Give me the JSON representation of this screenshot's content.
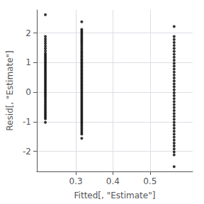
{
  "chart_data": {
    "type": "scatter",
    "xlabel": "Fitted[, \"Estimate\"]",
    "ylabel": "Resid[, \"Estimate\"]",
    "color": "#000000",
    "grid": true,
    "xlim": [
      0.195,
      0.615
    ],
    "ylim": [
      -2.68,
      2.78
    ],
    "xticks": [
      0.3,
      0.4,
      0.5
    ],
    "yticks": [
      -2,
      -1,
      0,
      1,
      2
    ],
    "series": [
      {
        "x": [
          0.218,
          0.218,
          0.218,
          0.218,
          0.218,
          0.218,
          0.218,
          0.218,
          0.218,
          0.218,
          0.218,
          0.218,
          0.218,
          0.218,
          0.218,
          0.218,
          0.218,
          0.218,
          0.218,
          0.218,
          0.218,
          0.218,
          0.218,
          0.218,
          0.218,
          0.218,
          0.218,
          0.218,
          0.218,
          0.218,
          0.218,
          0.218,
          0.218,
          0.218,
          0.218,
          0.218,
          0.218,
          0.218,
          0.218,
          0.218,
          0.218,
          0.218,
          0.218,
          0.218,
          0.218,
          0.218,
          0.218
        ],
        "values": [
          2.62,
          1.88,
          1.8,
          1.72,
          1.64,
          1.56,
          1.48,
          1.4,
          1.32,
          1.26,
          1.2,
          1.14,
          1.08,
          1.02,
          0.96,
          0.9,
          0.84,
          0.78,
          0.72,
          0.66,
          0.6,
          0.54,
          0.48,
          0.42,
          0.36,
          0.3,
          0.24,
          0.18,
          0.12,
          0.06,
          0.0,
          -0.06,
          -0.12,
          -0.18,
          -0.24,
          -0.3,
          -0.36,
          -0.42,
          -0.48,
          -0.54,
          -0.6,
          -0.66,
          -0.72,
          -0.78,
          -0.84,
          -0.9,
          -1.02
        ]
      },
      {
        "x": [
          0.316,
          0.316,
          0.316,
          0.316,
          0.316,
          0.316,
          0.316,
          0.316,
          0.316,
          0.316,
          0.316,
          0.316,
          0.316,
          0.316,
          0.316,
          0.316,
          0.316,
          0.316,
          0.316,
          0.316,
          0.316,
          0.316,
          0.316,
          0.316,
          0.316,
          0.316,
          0.316,
          0.316,
          0.316,
          0.316,
          0.316,
          0.316,
          0.316,
          0.316,
          0.316,
          0.316,
          0.316,
          0.316,
          0.316,
          0.316,
          0.316,
          0.316,
          0.316,
          0.316,
          0.316,
          0.316,
          0.316,
          0.316,
          0.316,
          0.316,
          0.316,
          0.316,
          0.316,
          0.316,
          0.316,
          0.316,
          0.316,
          0.316,
          0.316,
          0.316,
          0.316,
          0.316
        ],
        "values": [
          2.38,
          2.12,
          2.06,
          2.0,
          1.94,
          1.88,
          1.82,
          1.76,
          1.7,
          1.64,
          1.58,
          1.52,
          1.46,
          1.4,
          1.34,
          1.28,
          1.22,
          1.16,
          1.1,
          1.04,
          0.98,
          0.92,
          0.86,
          0.8,
          0.74,
          0.68,
          0.62,
          0.56,
          0.5,
          0.44,
          0.38,
          0.32,
          0.26,
          0.2,
          0.14,
          0.08,
          0.02,
          -0.04,
          -0.1,
          -0.16,
          -0.22,
          -0.28,
          -0.34,
          -0.4,
          -0.46,
          -0.52,
          -0.58,
          -0.64,
          -0.7,
          -0.76,
          -0.82,
          -0.88,
          -0.94,
          -1.0,
          -1.06,
          -1.12,
          -1.18,
          -1.24,
          -1.3,
          -1.36,
          -1.42,
          -1.56
        ]
      },
      {
        "x": [
          0.565,
          0.565,
          0.565,
          0.565,
          0.565,
          0.565,
          0.565,
          0.565,
          0.565,
          0.565,
          0.565,
          0.565,
          0.565,
          0.565,
          0.565,
          0.565,
          0.565,
          0.565,
          0.565,
          0.565,
          0.565,
          0.565,
          0.565,
          0.565,
          0.565,
          0.565,
          0.565,
          0.565,
          0.565,
          0.565,
          0.565,
          0.565,
          0.565,
          0.565,
          0.565,
          0.565,
          0.565,
          0.565,
          0.565,
          0.565,
          0.565,
          0.565,
          0.565
        ],
        "values": [
          2.22,
          1.88,
          1.78,
          1.68,
          1.58,
          1.48,
          1.38,
          1.28,
          1.18,
          1.08,
          0.98,
          0.88,
          0.78,
          0.68,
          0.58,
          0.48,
          0.38,
          0.28,
          0.18,
          0.08,
          -0.02,
          -0.12,
          -0.22,
          -0.32,
          -0.42,
          -0.52,
          -0.62,
          -0.72,
          -0.82,
          -0.92,
          -1.02,
          -1.12,
          -1.22,
          -1.32,
          -1.42,
          -1.52,
          -1.62,
          -1.72,
          -1.82,
          -1.92,
          -2.02,
          -2.12,
          -2.52
        ]
      }
    ]
  }
}
